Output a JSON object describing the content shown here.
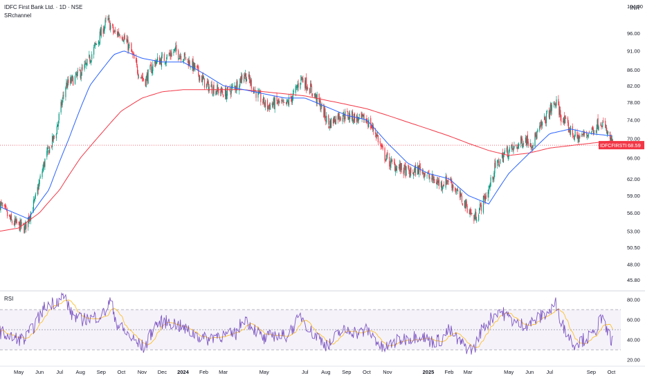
{
  "header": {
    "title": "IDFC First Bank Ltd. · 1D · NSE",
    "indicator": "SRchannel",
    "currency": "INR"
  },
  "colors": {
    "up": "#089981",
    "down": "#f23645",
    "ma_fast": "#2962ff",
    "ma_slow": "#f23645",
    "rsi_line": "#7e57c2",
    "rsi_ma": "#fbc02d",
    "rsi_band": "#7e57c2",
    "grid": "#f0f3fa",
    "axis_text": "#131722"
  },
  "chart_data": [
    {
      "type": "candlestick",
      "title": "IDFC First Bank Ltd. · 1D · NSE",
      "y_scale": "log",
      "ylim": [
        44.4,
        106
      ],
      "y_ticks": [
        45.8,
        48.0,
        50.5,
        53.0,
        56.0,
        59.0,
        62.0,
        66.0,
        70.0,
        74.0,
        78.0,
        82.0,
        86.0,
        91.0,
        96.0,
        104.0
      ],
      "y_tick_labels": [
        "45.80",
        "48.00",
        "50.50",
        "53.00",
        "56.00",
        "59.00",
        "62.00",
        "66.00",
        "70.00",
        "74.00",
        "78.00",
        "82.00",
        "86.00",
        "91.00",
        "96.00",
        "104.00"
      ],
      "x_range": [
        "2023-04-03",
        "2025-10-15"
      ],
      "x_ticks": [
        {
          "date": "2023-05-01",
          "label": "May"
        },
        {
          "date": "2023-06-01",
          "label": "Jun"
        },
        {
          "date": "2023-07-01",
          "label": "Jul"
        },
        {
          "date": "2023-08-01",
          "label": "Aug"
        },
        {
          "date": "2023-09-01",
          "label": "Sep"
        },
        {
          "date": "2023-10-01",
          "label": "Oct"
        },
        {
          "date": "2023-11-01",
          "label": "Nov"
        },
        {
          "date": "2023-12-01",
          "label": "Dec"
        },
        {
          "date": "2024-01-01",
          "label": "2024",
          "bold": true
        },
        {
          "date": "2024-02-01",
          "label": "Feb"
        },
        {
          "date": "2024-03-01",
          "label": "Mar"
        },
        {
          "date": "2024-05-01",
          "label": "May"
        },
        {
          "date": "2024-07-01",
          "label": "Jul"
        },
        {
          "date": "2024-08-01",
          "label": "Aug"
        },
        {
          "date": "2024-09-01",
          "label": "Sep"
        },
        {
          "date": "2024-10-01",
          "label": "Oct"
        },
        {
          "date": "2024-11-01",
          "label": "Nov"
        },
        {
          "date": "2025-01-01",
          "label": "2025",
          "bold": true
        },
        {
          "date": "2025-02-01",
          "label": "Feb"
        },
        {
          "date": "2025-03-01",
          "label": "Mar"
        },
        {
          "date": "2025-05-01",
          "label": "May"
        },
        {
          "date": "2025-06-01",
          "label": "Jun"
        },
        {
          "date": "2025-07-01",
          "label": "Jul"
        },
        {
          "date": "2025-09-01",
          "label": "Sep"
        },
        {
          "date": "2025-10-01",
          "label": "Oct"
        }
      ],
      "price_anchors": [
        [
          "2023-04-03",
          57.5
        ],
        [
          "2023-04-20",
          54.5
        ],
        [
          "2023-05-10",
          53.5
        ],
        [
          "2023-05-25",
          58
        ],
        [
          "2023-06-10",
          66
        ],
        [
          "2023-06-25",
          71
        ],
        [
          "2023-07-10",
          82
        ],
        [
          "2023-07-25",
          84
        ],
        [
          "2023-08-10",
          87
        ],
        [
          "2023-08-25",
          93
        ],
        [
          "2023-09-10",
          100
        ],
        [
          "2023-09-20",
          96
        ],
        [
          "2023-10-01",
          96
        ],
        [
          "2023-10-15",
          91
        ],
        [
          "2023-10-25",
          86
        ],
        [
          "2023-11-05",
          83
        ],
        [
          "2023-11-20",
          88
        ],
        [
          "2023-12-05",
          89
        ],
        [
          "2023-12-20",
          91
        ],
        [
          "2024-01-05",
          89
        ],
        [
          "2024-01-20",
          86
        ],
        [
          "2024-02-05",
          82
        ],
        [
          "2024-02-20",
          81
        ],
        [
          "2024-03-05",
          80
        ],
        [
          "2024-03-20",
          82
        ],
        [
          "2024-04-01",
          85
        ],
        [
          "2024-04-10",
          83
        ],
        [
          "2024-04-20",
          80
        ],
        [
          "2024-05-05",
          77
        ],
        [
          "2024-05-20",
          78
        ],
        [
          "2024-06-01",
          77
        ],
        [
          "2024-06-15",
          80
        ],
        [
          "2024-06-25",
          84
        ],
        [
          "2024-07-10",
          81
        ],
        [
          "2024-07-25",
          77
        ],
        [
          "2024-08-05",
          73
        ],
        [
          "2024-08-20",
          75
        ],
        [
          "2024-09-05",
          75
        ],
        [
          "2024-09-20",
          74
        ],
        [
          "2024-10-01",
          74
        ],
        [
          "2024-10-15",
          71
        ],
        [
          "2024-10-25",
          67
        ],
        [
          "2024-11-05",
          65
        ],
        [
          "2024-11-20",
          64
        ],
        [
          "2024-12-05",
          63
        ],
        [
          "2024-12-20",
          64
        ],
        [
          "2025-01-05",
          62
        ],
        [
          "2025-01-20",
          61
        ],
        [
          "2025-02-01",
          62
        ],
        [
          "2025-02-15",
          59
        ],
        [
          "2025-02-28",
          57
        ],
        [
          "2025-03-10",
          55
        ],
        [
          "2025-03-20",
          57
        ],
        [
          "2025-04-01",
          60
        ],
        [
          "2025-04-10",
          64
        ],
        [
          "2025-04-25",
          67
        ],
        [
          "2025-05-10",
          68
        ],
        [
          "2025-05-25",
          70
        ],
        [
          "2025-06-05",
          69
        ],
        [
          "2025-06-20",
          73
        ],
        [
          "2025-07-01",
          76
        ],
        [
          "2025-07-10",
          78
        ],
        [
          "2025-07-20",
          74
        ],
        [
          "2025-07-30",
          72
        ],
        [
          "2025-08-10",
          70
        ],
        [
          "2025-08-25",
          71
        ],
        [
          "2025-09-05",
          72
        ],
        [
          "2025-09-15",
          74
        ],
        [
          "2025-09-25",
          71
        ],
        [
          "2025-10-03",
          68.6
        ]
      ],
      "ma_fast_anchors": [
        [
          "2023-04-03",
          57
        ],
        [
          "2023-05-15",
          55
        ],
        [
          "2023-06-15",
          60
        ],
        [
          "2023-07-15",
          70
        ],
        [
          "2023-08-15",
          82
        ],
        [
          "2023-09-20",
          90
        ],
        [
          "2023-10-05",
          91
        ],
        [
          "2023-11-01",
          89
        ],
        [
          "2023-12-01",
          88
        ],
        [
          "2024-01-01",
          88
        ],
        [
          "2024-02-01",
          85
        ],
        [
          "2024-03-01",
          82
        ],
        [
          "2024-04-01",
          81
        ],
        [
          "2024-05-01",
          80
        ],
        [
          "2024-06-01",
          79
        ],
        [
          "2024-07-01",
          79
        ],
        [
          "2024-08-01",
          77
        ],
        [
          "2024-09-01",
          75
        ],
        [
          "2024-10-01",
          74
        ],
        [
          "2024-11-01",
          69
        ],
        [
          "2024-12-01",
          65
        ],
        [
          "2025-01-01",
          63
        ],
        [
          "2025-02-01",
          62
        ],
        [
          "2025-03-01",
          59
        ],
        [
          "2025-04-01",
          57.5
        ],
        [
          "2025-05-01",
          63
        ],
        [
          "2025-06-01",
          67
        ],
        [
          "2025-07-01",
          71
        ],
        [
          "2025-08-01",
          72
        ],
        [
          "2025-09-01",
          71
        ],
        [
          "2025-10-03",
          70.5
        ]
      ],
      "ma_slow_anchors": [
        [
          "2023-04-03",
          53
        ],
        [
          "2023-05-01",
          53.5
        ],
        [
          "2023-06-01",
          56
        ],
        [
          "2023-07-01",
          60
        ],
        [
          "2023-08-01",
          66
        ],
        [
          "2023-09-01",
          71
        ],
        [
          "2023-10-01",
          76
        ],
        [
          "2023-11-01",
          79
        ],
        [
          "2023-12-01",
          80.5
        ],
        [
          "2024-01-01",
          81
        ],
        [
          "2024-02-01",
          81
        ],
        [
          "2024-03-01",
          81
        ],
        [
          "2024-04-01",
          81
        ],
        [
          "2024-05-01",
          80.5
        ],
        [
          "2024-06-01",
          80
        ],
        [
          "2024-07-01",
          79.5
        ],
        [
          "2024-08-01",
          78.5
        ],
        [
          "2024-09-01",
          77.5
        ],
        [
          "2024-10-01",
          76.5
        ],
        [
          "2024-11-01",
          75
        ],
        [
          "2024-12-01",
          73.5
        ],
        [
          "2025-01-01",
          72
        ],
        [
          "2025-02-01",
          70.5
        ],
        [
          "2025-03-01",
          69
        ],
        [
          "2025-04-01",
          67.5
        ],
        [
          "2025-05-01",
          66.5
        ],
        [
          "2025-06-01",
          67
        ],
        [
          "2025-07-01",
          68
        ],
        [
          "2025-08-01",
          68.5
        ],
        [
          "2025-09-01",
          69
        ],
        [
          "2025-10-03",
          69.5
        ]
      ],
      "last_price": {
        "value": 68.59,
        "label": "68.59",
        "symbol": "IDFCFIRSTB"
      }
    },
    {
      "type": "line",
      "title": "RSI",
      "ylim": [
        15,
        88
      ],
      "y_ticks": [
        20,
        40,
        60,
        80
      ],
      "y_tick_labels": [
        "20.00",
        "40.00",
        "60.00",
        "80.00"
      ],
      "bands": {
        "upper": 70,
        "middle": 50,
        "lower": 30
      },
      "rsi_anchors": [
        [
          "2023-04-03",
          48
        ],
        [
          "2023-04-20",
          42
        ],
        [
          "2023-05-10",
          40
        ],
        [
          "2023-05-25",
          55
        ],
        [
          "2023-06-10",
          74
        ],
        [
          "2023-06-25",
          78
        ],
        [
          "2023-07-08",
          84
        ],
        [
          "2023-07-18",
          66
        ],
        [
          "2023-08-01",
          60
        ],
        [
          "2023-08-20",
          62
        ],
        [
          "2023-09-05",
          66
        ],
        [
          "2023-09-15",
          79
        ],
        [
          "2023-09-25",
          55
        ],
        [
          "2023-10-10",
          46
        ],
        [
          "2023-10-25",
          36
        ],
        [
          "2023-11-05",
          32
        ],
        [
          "2023-11-20",
          55
        ],
        [
          "2023-12-05",
          58
        ],
        [
          "2023-12-20",
          56
        ],
        [
          "2024-01-05",
          50
        ],
        [
          "2024-01-20",
          45
        ],
        [
          "2024-02-05",
          40
        ],
        [
          "2024-02-20",
          45
        ],
        [
          "2024-03-05",
          44
        ],
        [
          "2024-03-20",
          46
        ],
        [
          "2024-04-01",
          62
        ],
        [
          "2024-04-15",
          52
        ],
        [
          "2024-05-01",
          40
        ],
        [
          "2024-05-15",
          45
        ],
        [
          "2024-06-01",
          43
        ],
        [
          "2024-06-15",
          54
        ],
        [
          "2024-06-25",
          64
        ],
        [
          "2024-07-10",
          48
        ],
        [
          "2024-07-25",
          40
        ],
        [
          "2024-08-05",
          33
        ],
        [
          "2024-08-20",
          47
        ],
        [
          "2024-09-05",
          50
        ],
        [
          "2024-09-20",
          46
        ],
        [
          "2024-10-01",
          50
        ],
        [
          "2024-10-15",
          40
        ],
        [
          "2024-10-25",
          30
        ],
        [
          "2024-11-05",
          35
        ],
        [
          "2024-11-20",
          40
        ],
        [
          "2024-12-05",
          42
        ],
        [
          "2024-12-20",
          45
        ],
        [
          "2025-01-05",
          38
        ],
        [
          "2025-01-20",
          40
        ],
        [
          "2025-02-01",
          50
        ],
        [
          "2025-02-15",
          38
        ],
        [
          "2025-02-28",
          32
        ],
        [
          "2025-03-10",
          30
        ],
        [
          "2025-03-20",
          48
        ],
        [
          "2025-04-01",
          58
        ],
        [
          "2025-04-15",
          70
        ],
        [
          "2025-05-01",
          62
        ],
        [
          "2025-05-15",
          55
        ],
        [
          "2025-06-01",
          56
        ],
        [
          "2025-06-20",
          64
        ],
        [
          "2025-07-01",
          68
        ],
        [
          "2025-07-10",
          76
        ],
        [
          "2025-07-20",
          55
        ],
        [
          "2025-08-05",
          36
        ],
        [
          "2025-08-20",
          40
        ],
        [
          "2025-09-05",
          45
        ],
        [
          "2025-09-15",
          62
        ],
        [
          "2025-09-25",
          48
        ],
        [
          "2025-10-03",
          38
        ]
      ]
    }
  ]
}
